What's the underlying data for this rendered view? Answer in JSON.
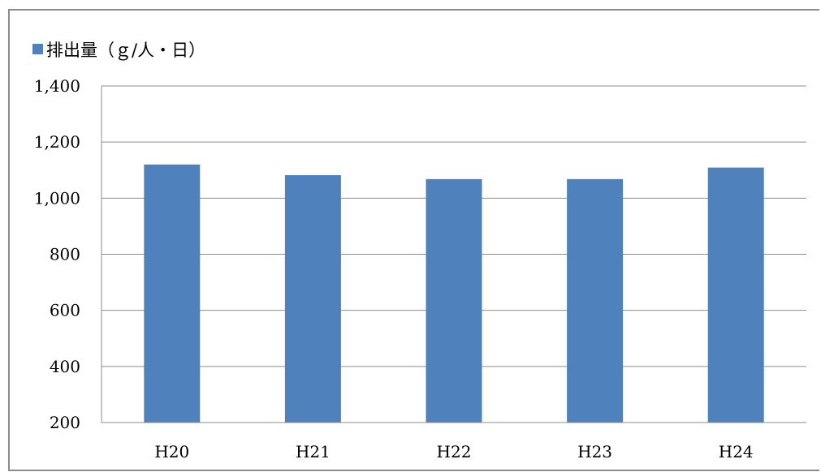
{
  "chart_data": {
    "type": "bar",
    "categories": [
      "H20",
      "H21",
      "H22",
      "H23",
      "H24"
    ],
    "series": [
      {
        "name": "排出量（ｇ/人・日）",
        "values": [
          1120,
          1082,
          1068,
          1068,
          1109
        ],
        "color": "#4f81bd"
      }
    ],
    "ylim": [
      200,
      1400
    ],
    "yticks": [
      "1,400",
      "1,200",
      "1,000",
      "800",
      "600",
      "400",
      "200"
    ],
    "ytick_values": [
      1400,
      1200,
      1000,
      800,
      600,
      400,
      200
    ],
    "grid": true,
    "legend_position": "top-left",
    "title": "",
    "xlabel": "",
    "ylabel": ""
  },
  "colors": {
    "bar": "#4f81bd",
    "gridline": "#8c8c8c",
    "frame": "#8c8c8c"
  }
}
